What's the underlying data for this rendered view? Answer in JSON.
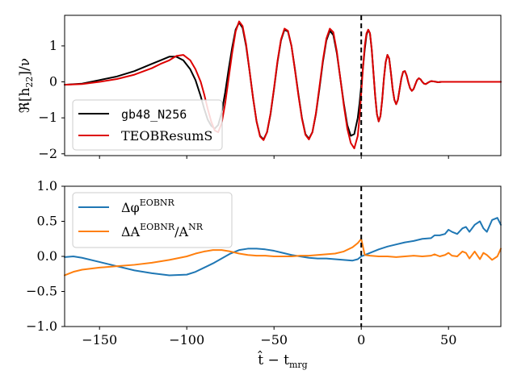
{
  "chart_data": [
    {
      "type": "line",
      "panel": "top",
      "ylabel": "ℜ[h",
      "ylabel_sub": "22",
      "ylabel_tail": "]/ν",
      "xlim": [
        -170,
        80
      ],
      "ylim": [
        -2.05,
        1.85
      ],
      "yticks": [
        -2,
        -1,
        0,
        1
      ],
      "ytick_labels": [
        "−2",
        "−1",
        "0",
        "1"
      ],
      "xticks": [
        -150,
        -100,
        -50,
        0,
        50
      ],
      "vline_x": 0,
      "series": [
        {
          "name": "gb48_N256",
          "color": "#000000",
          "x": [
            -170,
            -160,
            -150,
            -140,
            -130,
            -120,
            -115,
            -110,
            -106,
            -102,
            -98,
            -95,
            -92,
            -90,
            -88,
            -86,
            -84,
            -82,
            -80,
            -78,
            -76,
            -74,
            -72,
            -70,
            -68,
            -66,
            -64,
            -62,
            -60,
            -58,
            -56,
            -54,
            -52,
            -50,
            -48,
            -46,
            -44,
            -42,
            -40,
            -38,
            -36,
            -34,
            -32,
            -30,
            -28,
            -26,
            -24,
            -22,
            -20,
            -18,
            -16,
            -14,
            -12,
            -10,
            -8,
            -6,
            -4,
            -2,
            -1,
            0,
            1,
            2,
            3,
            4,
            5,
            6,
            7,
            8,
            9,
            10,
            11,
            12,
            13,
            14,
            15,
            16,
            17,
            18,
            19,
            20,
            21,
            22,
            23,
            24,
            25,
            26,
            27,
            28,
            29,
            30,
            31,
            32,
            33,
            34,
            35,
            36,
            37,
            38,
            39,
            40,
            42,
            44,
            46,
            48,
            50,
            55,
            60,
            65,
            70,
            75,
            80
          ],
          "y": [
            -0.08,
            -0.05,
            0.05,
            0.15,
            0.3,
            0.5,
            0.6,
            0.7,
            0.7,
            0.6,
            0.35,
            0.05,
            -0.4,
            -0.75,
            -1.05,
            -1.22,
            -1.3,
            -1.2,
            -0.85,
            -0.3,
            0.35,
            0.95,
            1.45,
            1.65,
            1.5,
            1.0,
            0.3,
            -0.45,
            -1.1,
            -1.5,
            -1.6,
            -1.4,
            -0.9,
            -0.2,
            0.55,
            1.15,
            1.45,
            1.4,
            1.0,
            0.35,
            -0.35,
            -1.0,
            -1.45,
            -1.58,
            -1.4,
            -0.9,
            -0.2,
            0.55,
            1.15,
            1.42,
            1.3,
            0.8,
            0.1,
            -0.6,
            -1.2,
            -1.5,
            -1.45,
            -1.0,
            -0.6,
            -0.1,
            0.4,
            0.9,
            1.3,
            1.45,
            1.35,
            0.9,
            0.25,
            -0.4,
            -0.9,
            -1.1,
            -0.95,
            -0.5,
            0.1,
            0.55,
            0.75,
            0.65,
            0.25,
            -0.2,
            -0.5,
            -0.62,
            -0.5,
            -0.2,
            0.1,
            0.28,
            0.3,
            0.18,
            -0.02,
            -0.18,
            -0.25,
            -0.2,
            -0.07,
            0.05,
            0.1,
            0.07,
            0.0,
            -0.05,
            -0.06,
            -0.03,
            0.0,
            0.02,
            0.01,
            -0.01,
            0.0,
            0.0,
            0.0,
            0.0,
            0.0,
            0.0,
            0.0,
            0.0,
            0.0
          ]
        },
        {
          "name": "TEOBResumS",
          "color": "#dd0000",
          "x": [
            -170,
            -160,
            -150,
            -140,
            -130,
            -120,
            -115,
            -110,
            -106,
            -102,
            -98,
            -95,
            -92,
            -90,
            -88,
            -86,
            -84,
            -82,
            -80,
            -78,
            -76,
            -74,
            -72,
            -70,
            -68,
            -66,
            -64,
            -62,
            -60,
            -58,
            -56,
            -54,
            -52,
            -50,
            -48,
            -46,
            -44,
            -42,
            -40,
            -38,
            -36,
            -34,
            -32,
            -30,
            -28,
            -26,
            -24,
            -22,
            -20,
            -18,
            -16,
            -14,
            -12,
            -10,
            -8,
            -6,
            -4,
            -2,
            -1,
            0,
            1,
            2,
            3,
            4,
            5,
            6,
            7,
            8,
            9,
            10,
            11,
            12,
            13,
            14,
            15,
            16,
            17,
            18,
            19,
            20,
            21,
            22,
            23,
            24,
            25,
            26,
            27,
            28,
            29,
            30,
            31,
            32,
            33,
            34,
            35,
            36,
            37,
            38,
            39,
            40,
            42,
            44,
            46,
            48,
            50,
            55,
            60,
            65,
            70,
            75,
            80
          ],
          "y": [
            -0.08,
            -0.06,
            0.0,
            0.08,
            0.2,
            0.38,
            0.5,
            0.6,
            0.72,
            0.75,
            0.6,
            0.35,
            0.0,
            -0.35,
            -0.75,
            -1.1,
            -1.35,
            -1.4,
            -1.15,
            -0.6,
            0.1,
            0.8,
            1.4,
            1.68,
            1.55,
            1.05,
            0.3,
            -0.45,
            -1.1,
            -1.52,
            -1.62,
            -1.4,
            -0.88,
            -0.18,
            0.58,
            1.18,
            1.48,
            1.42,
            1.0,
            0.33,
            -0.38,
            -1.02,
            -1.47,
            -1.6,
            -1.4,
            -0.88,
            -0.15,
            0.6,
            1.2,
            1.48,
            1.38,
            0.85,
            0.1,
            -0.65,
            -1.3,
            -1.7,
            -1.85,
            -1.5,
            -1.0,
            -0.3,
            0.4,
            1.0,
            1.35,
            1.45,
            1.35,
            0.9,
            0.25,
            -0.4,
            -0.9,
            -1.1,
            -0.95,
            -0.5,
            0.1,
            0.55,
            0.75,
            0.65,
            0.25,
            -0.2,
            -0.5,
            -0.62,
            -0.5,
            -0.2,
            0.1,
            0.28,
            0.3,
            0.18,
            -0.02,
            -0.18,
            -0.25,
            -0.2,
            -0.07,
            0.05,
            0.1,
            0.07,
            0.0,
            -0.05,
            -0.06,
            -0.03,
            0.0,
            0.02,
            0.01,
            -0.01,
            0.0,
            0.0,
            0.0,
            0.0,
            0.0,
            0.0,
            0.0,
            0.0,
            0.0
          ]
        }
      ],
      "legend_placement": "lower-left"
    },
    {
      "type": "line",
      "panel": "bottom",
      "xlabel": "t̂ − t",
      "xlabel_sub": "mrg",
      "xlim": [
        -170,
        80
      ],
      "ylim": [
        -1.0,
        1.0
      ],
      "yticks": [
        -1.0,
        -0.5,
        0.0,
        0.5,
        1.0
      ],
      "ytick_labels": [
        "−1.0",
        "−0.5",
        "0.0",
        "0.5",
        "1.0"
      ],
      "xticks": [
        -150,
        -100,
        -50,
        0,
        50
      ],
      "xtick_labels": [
        "−150",
        "−100",
        "−50",
        "0",
        "50"
      ],
      "vline_x": 0,
      "series": [
        {
          "name": "Δφ",
          "sup": "EOBNR",
          "color": "#1f77b4",
          "x": [
            -170,
            -165,
            -160,
            -150,
            -140,
            -130,
            -120,
            -110,
            -100,
            -95,
            -90,
            -85,
            -80,
            -75,
            -70,
            -65,
            -60,
            -55,
            -50,
            -45,
            -40,
            -35,
            -30,
            -25,
            -20,
            -15,
            -10,
            -5,
            -2,
            0,
            2,
            5,
            10,
            15,
            20,
            25,
            30,
            35,
            40,
            42,
            45,
            48,
            50,
            52,
            55,
            58,
            60,
            62,
            65,
            68,
            70,
            72,
            75,
            78,
            80
          ],
          "y": [
            -0.01,
            0.0,
            -0.02,
            -0.08,
            -0.14,
            -0.2,
            -0.24,
            -0.27,
            -0.26,
            -0.22,
            -0.16,
            -0.1,
            -0.03,
            0.04,
            0.09,
            0.11,
            0.11,
            0.1,
            0.08,
            0.05,
            0.02,
            0.0,
            -0.02,
            -0.03,
            -0.03,
            -0.04,
            -0.05,
            -0.06,
            -0.04,
            0.0,
            0.02,
            0.05,
            0.1,
            0.14,
            0.17,
            0.2,
            0.22,
            0.25,
            0.26,
            0.3,
            0.3,
            0.32,
            0.38,
            0.35,
            0.32,
            0.4,
            0.42,
            0.35,
            0.45,
            0.5,
            0.4,
            0.35,
            0.52,
            0.55,
            0.45
          ]
        },
        {
          "name": "ΔA",
          "sup": "EOBNR",
          "tail": "/A",
          "tail_sup": "NR",
          "color": "#ff7f0e",
          "x": [
            -170,
            -165,
            -160,
            -150,
            -140,
            -130,
            -120,
            -110,
            -100,
            -95,
            -90,
            -85,
            -80,
            -75,
            -70,
            -65,
            -60,
            -55,
            -50,
            -45,
            -40,
            -35,
            -30,
            -25,
            -20,
            -15,
            -10,
            -5,
            -2,
            0,
            2,
            5,
            10,
            15,
            20,
            25,
            30,
            35,
            40,
            42,
            45,
            48,
            50,
            52,
            55,
            58,
            60,
            62,
            65,
            68,
            70,
            72,
            75,
            78,
            80
          ],
          "y": [
            -0.27,
            -0.22,
            -0.19,
            -0.16,
            -0.14,
            -0.12,
            -0.09,
            -0.05,
            0.0,
            0.04,
            0.07,
            0.09,
            0.09,
            0.07,
            0.04,
            0.02,
            0.01,
            0.01,
            0.0,
            0.0,
            0.0,
            0.01,
            0.01,
            0.02,
            0.03,
            0.04,
            0.07,
            0.13,
            0.19,
            0.25,
            0.02,
            0.01,
            0.0,
            0.0,
            -0.01,
            0.0,
            0.01,
            0.0,
            0.01,
            0.03,
            0.0,
            0.02,
            0.05,
            0.01,
            0.0,
            0.07,
            0.05,
            -0.03,
            0.07,
            -0.04,
            0.05,
            0.02,
            -0.05,
            0.0,
            0.11
          ]
        }
      ],
      "legend_placement": "upper-left"
    }
  ]
}
